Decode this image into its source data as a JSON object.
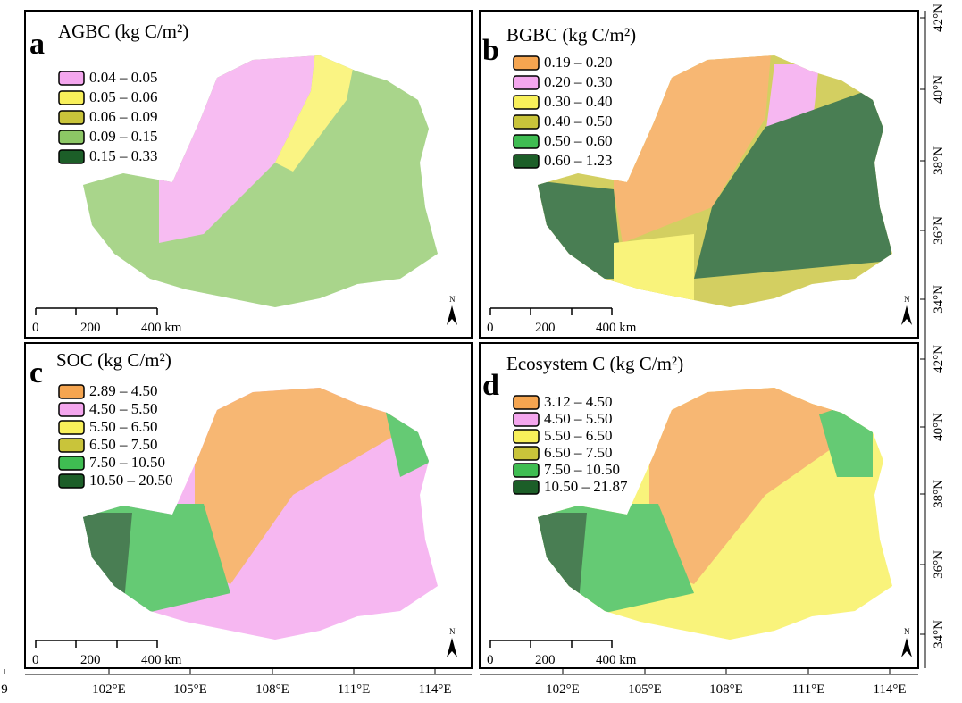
{
  "panels": [
    {
      "letter": "a",
      "title": "AGBC (kg C/m²)",
      "legend": [
        {
          "label": "0.04 – 0.05",
          "color": "#f4a6ee"
        },
        {
          "label": "0.05 – 0.06",
          "color": "#f8f05a"
        },
        {
          "label": "0.06 – 0.09",
          "color": "#c9c43a"
        },
        {
          "label": "0.09 – 0.15",
          "color": "#8cc765"
        },
        {
          "label": "0.15 – 0.33",
          "color": "#1c5e28"
        }
      ],
      "scale": [
        "0",
        "200",
        "400 km"
      ],
      "north": "N"
    },
    {
      "letter": "b",
      "title": "BGBC (kg C/m²)",
      "legend": [
        {
          "label": "0.19 – 0.20",
          "color": "#f5a550"
        },
        {
          "label": "0.20 – 0.30",
          "color": "#f4a6ee"
        },
        {
          "label": "0.30 – 0.40",
          "color": "#f8f05a"
        },
        {
          "label": "0.40 – 0.50",
          "color": "#c9c43a"
        },
        {
          "label": "0.50 – 0.60",
          "color": "#3fbd52"
        },
        {
          "label": "0.60 – 1.23",
          "color": "#1c5e28"
        }
      ],
      "scale": [
        "0",
        "200",
        "400 km"
      ],
      "north": "N"
    },
    {
      "letter": "c",
      "title": "SOC (kg C/m²)",
      "legend": [
        {
          "label": "2.89 – 4.50",
          "color": "#f5a550"
        },
        {
          "label": "4.50 – 5.50",
          "color": "#f4a6ee"
        },
        {
          "label": "5.50 – 6.50",
          "color": "#f8f05a"
        },
        {
          "label": "6.50 – 7.50",
          "color": "#c9c43a"
        },
        {
          "label": "7.50 – 10.50",
          "color": "#3fbd52"
        },
        {
          "label": "10.50 – 20.50",
          "color": "#1c5e28"
        }
      ],
      "scale": [
        "0",
        "200",
        "400 km"
      ],
      "north": "N"
    },
    {
      "letter": "d",
      "title": "Ecosystem C (kg C/m²)",
      "legend": [
        {
          "label": "3.12 – 4.50",
          "color": "#f5a550"
        },
        {
          "label": "4.50 – 5.50",
          "color": "#f4a6ee"
        },
        {
          "label": "5.50 – 6.50",
          "color": "#f8f05a"
        },
        {
          "label": "6.50 – 7.50",
          "color": "#c9c43a"
        },
        {
          "label": "7.50 – 10.50",
          "color": "#3fbd52"
        },
        {
          "label": "10.50 – 21.87",
          "color": "#1c5e28"
        }
      ],
      "scale": [
        "0",
        "200",
        "400 km"
      ],
      "north": "N"
    }
  ],
  "lat_labels_top": [
    "42°N",
    "40°N",
    "38°N",
    "36°N",
    "34°N"
  ],
  "lat_labels_bottom": [
    "42°N",
    "40°N",
    "38°N",
    "36°N",
    "34°N"
  ],
  "lon_labels_left": [
    "9",
    "102°E",
    "105°E",
    "108°E",
    "111°E",
    "114°E"
  ],
  "lon_labels_right": [
    "102°E",
    "105°E",
    "108°E",
    "111°E",
    "114°E"
  ]
}
